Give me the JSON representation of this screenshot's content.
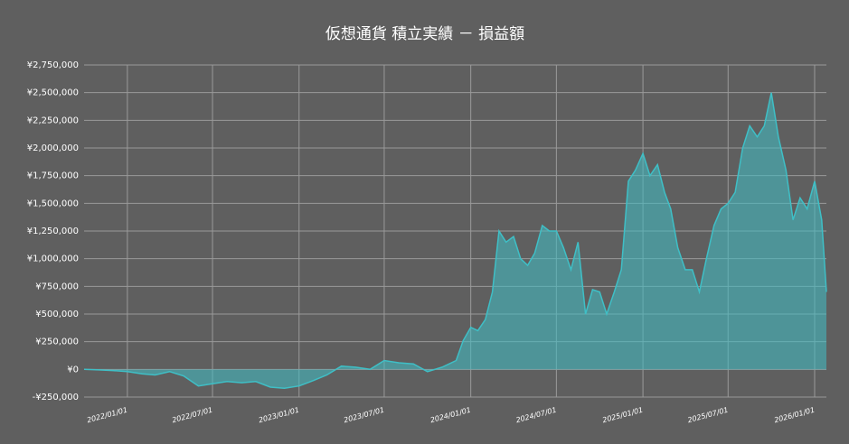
{
  "chart_data": {
    "type": "area",
    "title": "仮想通貨 積立実績 － 損益額",
    "x": [
      "2021/10/01",
      "2021/11/01",
      "2021/12/01",
      "2022/01/01",
      "2022/02/01",
      "2022/03/01",
      "2022/04/01",
      "2022/05/01",
      "2022/06/01",
      "2022/07/01",
      "2022/08/01",
      "2022/09/01",
      "2022/10/01",
      "2022/11/01",
      "2022/12/01",
      "2023/01/01",
      "2023/02/01",
      "2023/03/01",
      "2023/04/01",
      "2023/05/01",
      "2023/06/01",
      "2023/07/01",
      "2023/08/01",
      "2023/09/01",
      "2023/10/01",
      "2023/11/01",
      "2023/12/01",
      "2023/12/16",
      "2024/01/01",
      "2024/01/16",
      "2024/02/01",
      "2024/02/16",
      "2024/03/01",
      "2024/03/16",
      "2024/04/01",
      "2024/04/16",
      "2024/05/01",
      "2024/05/16",
      "2024/06/01",
      "2024/06/16",
      "2024/07/01",
      "2024/07/16",
      "2024/08/01",
      "2024/08/16",
      "2024/09/01",
      "2024/09/16",
      "2024/10/01",
      "2024/10/16",
      "2024/11/01",
      "2024/11/16",
      "2024/12/01",
      "2024/12/16",
      "2025/01/01",
      "2025/01/16",
      "2025/02/01",
      "2025/02/16",
      "2025/03/01",
      "2025/03/16",
      "2025/04/01",
      "2025/04/16",
      "2025/05/01",
      "2025/05/16",
      "2025/06/01",
      "2025/06/16",
      "2025/07/01",
      "2025/07/16",
      "2025/08/01",
      "2025/08/16",
      "2025/09/01",
      "2025/09/16",
      "2025/10/01",
      "2025/10/16",
      "2025/11/01",
      "2025/11/16",
      "2025/12/01",
      "2025/12/16",
      "2026/01/01",
      "2026/01/16",
      "2026/01/26"
    ],
    "values": [
      0,
      -5000,
      -10000,
      -20000,
      -40000,
      -50000,
      -20000,
      -60000,
      -150000,
      -130000,
      -110000,
      -120000,
      -110000,
      -160000,
      -170000,
      -150000,
      -100000,
      -50000,
      30000,
      20000,
      0,
      80000,
      60000,
      50000,
      -20000,
      20000,
      80000,
      260000,
      380000,
      350000,
      450000,
      700000,
      1250000,
      1150000,
      1200000,
      1000000,
      940000,
      1050000,
      1300000,
      1250000,
      1250000,
      1100000,
      900000,
      1150000,
      500000,
      720000,
      700000,
      500000,
      700000,
      900000,
      1700000,
      1800000,
      1950000,
      1750000,
      1850000,
      1600000,
      1450000,
      1100000,
      900000,
      900000,
      700000,
      1000000,
      1300000,
      1450000,
      1500000,
      1600000,
      2000000,
      2200000,
      2100000,
      2200000,
      2500000,
      2100000,
      1800000,
      1350000,
      1550000,
      1450000,
      1700000,
      1350000,
      700000
    ],
    "color": "#3fbfc6",
    "xlim": [
      "2021/10/01",
      "2026/01/26"
    ],
    "xticks": [
      "2022/01/01",
      "2022/07/01",
      "2023/01/01",
      "2023/07/01",
      "2024/01/01",
      "2024/07/01",
      "2025/01/01",
      "2025/07/01",
      "2026/01/01"
    ],
    "ylim": [
      -250000,
      2750000
    ],
    "yticks": [
      {
        "value": -250000,
        "label": "-¥250,000"
      },
      {
        "value": 0,
        "label": "¥0"
      },
      {
        "value": 250000,
        "label": "¥250,000"
      },
      {
        "value": 500000,
        "label": "¥500,000"
      },
      {
        "value": 750000,
        "label": "¥750,000"
      },
      {
        "value": 1000000,
        "label": "¥1,000,000"
      },
      {
        "value": 1250000,
        "label": "¥1,250,000"
      },
      {
        "value": 1500000,
        "label": "¥1,500,000"
      },
      {
        "value": 1750000,
        "label": "¥1,750,000"
      },
      {
        "value": 2000000,
        "label": "¥2,000,000"
      },
      {
        "value": 2250000,
        "label": "¥2,250,000"
      },
      {
        "value": 2500000,
        "label": "¥2,500,000"
      },
      {
        "value": 2750000,
        "label": "¥2,750,000"
      }
    ],
    "grid": true
  }
}
